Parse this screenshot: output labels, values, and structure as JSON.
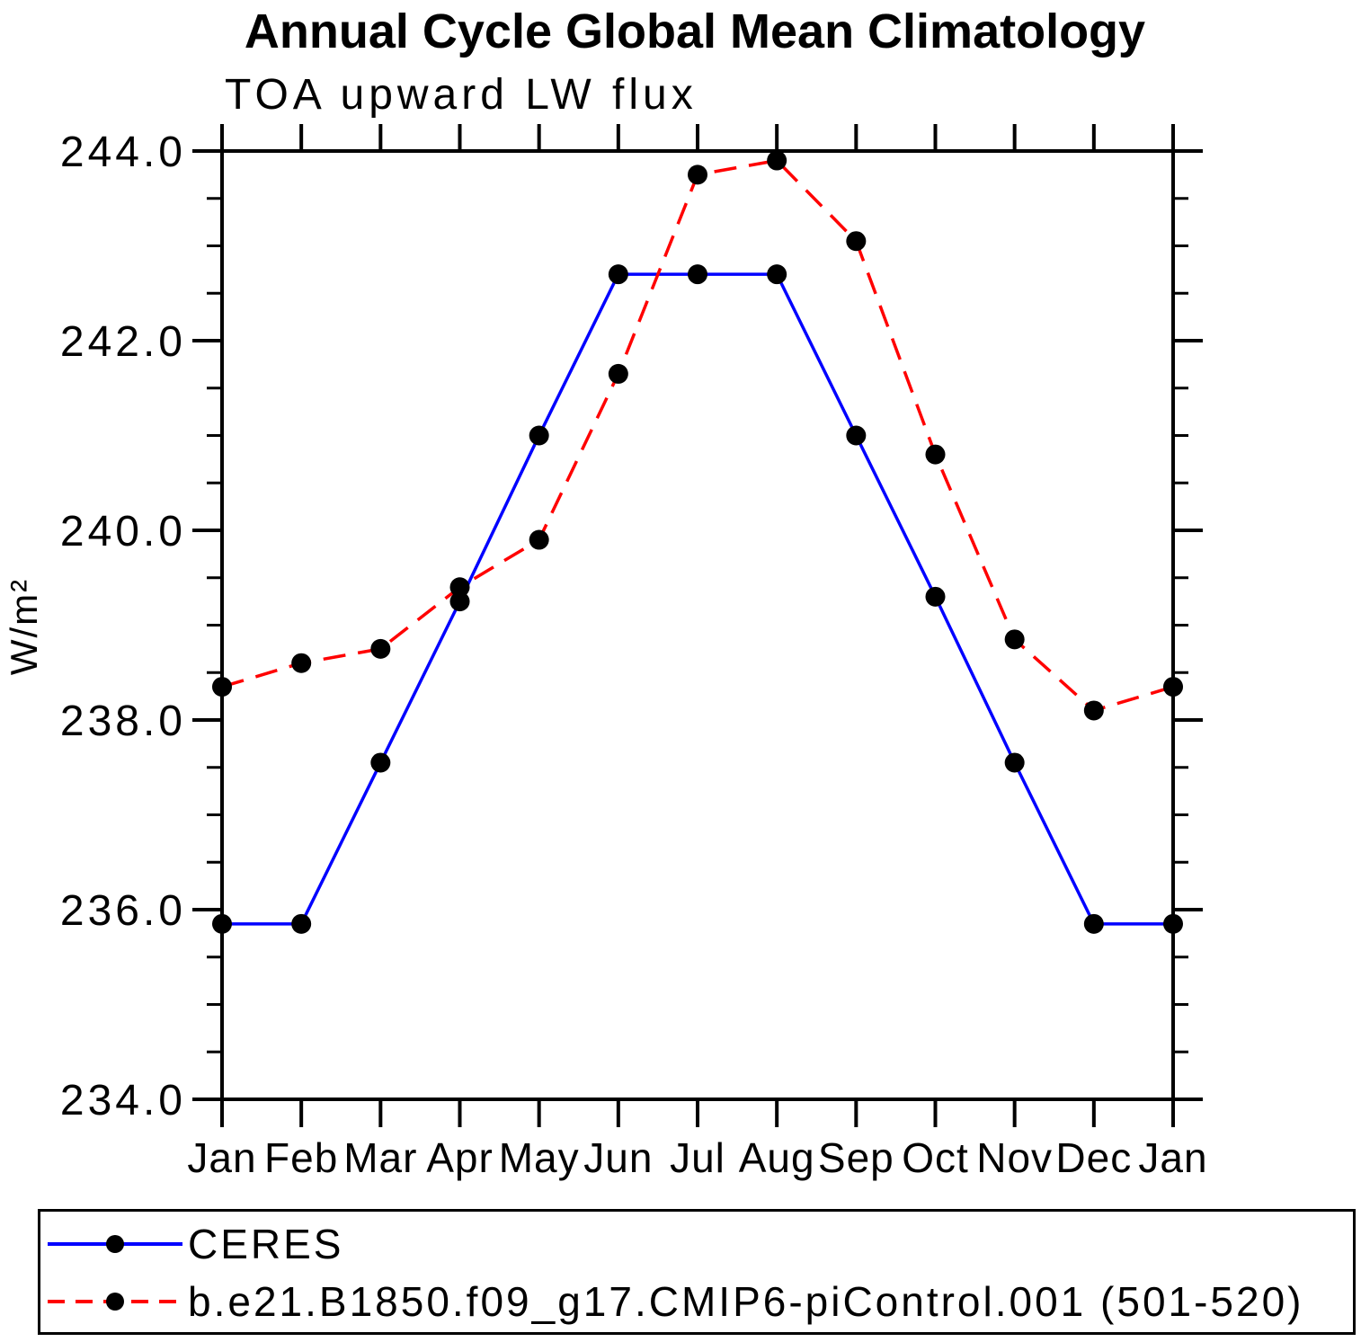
{
  "title": "Annual Cycle Global Mean Climatology",
  "subtitle": "TOA upward LW flux",
  "ylabel": "W/m²",
  "legend": {
    "entries": [
      {
        "label": "CERES",
        "color": "#0000ff",
        "style": "solid"
      },
      {
        "label": "b.e21.B1850.f09_g17.CMIP6-piControl.001 (501-520)",
        "color": "#ff0000",
        "style": "dashed"
      }
    ],
    "marker_color": "#000000"
  },
  "chart_data": {
    "type": "line",
    "title": "TOA upward LW flux",
    "suptitle": "Annual Cycle Global Mean Climatology",
    "xlabel": "",
    "ylabel": "W/m²",
    "x_tick_labels": [
      "Jan",
      "Feb",
      "Mar",
      "Apr",
      "May",
      "Jun",
      "Jul",
      "Aug",
      "Sep",
      "Oct",
      "Nov",
      "Dec",
      "Jan"
    ],
    "y_tick_labels": [
      "234.0",
      "236.0",
      "238.0",
      "240.0",
      "242.0",
      "244.0"
    ],
    "ylim": [
      234.0,
      244.0
    ],
    "y_major_step": 2.0,
    "y_minor_step": 0.5,
    "grid": false,
    "legend_position": "bottom",
    "frame_color": "#000000",
    "series": [
      {
        "name": "CERES",
        "color": "#0000ff",
        "line_style": "solid",
        "marker": "circle",
        "marker_color": "#000000",
        "values": [
          235.85,
          235.85,
          237.55,
          239.25,
          241.0,
          242.7,
          242.7,
          242.7,
          241.0,
          239.3,
          237.55,
          235.85,
          235.85
        ]
      },
      {
        "name": "b.e21.B1850.f09_g17.CMIP6-piControl.001 (501-520)",
        "color": "#ff0000",
        "line_style": "dashed",
        "marker": "circle",
        "marker_color": "#000000",
        "values": [
          238.35,
          238.6,
          238.75,
          239.4,
          239.9,
          241.65,
          243.75,
          243.9,
          243.05,
          240.8,
          238.85,
          238.1,
          238.35
        ]
      }
    ]
  }
}
